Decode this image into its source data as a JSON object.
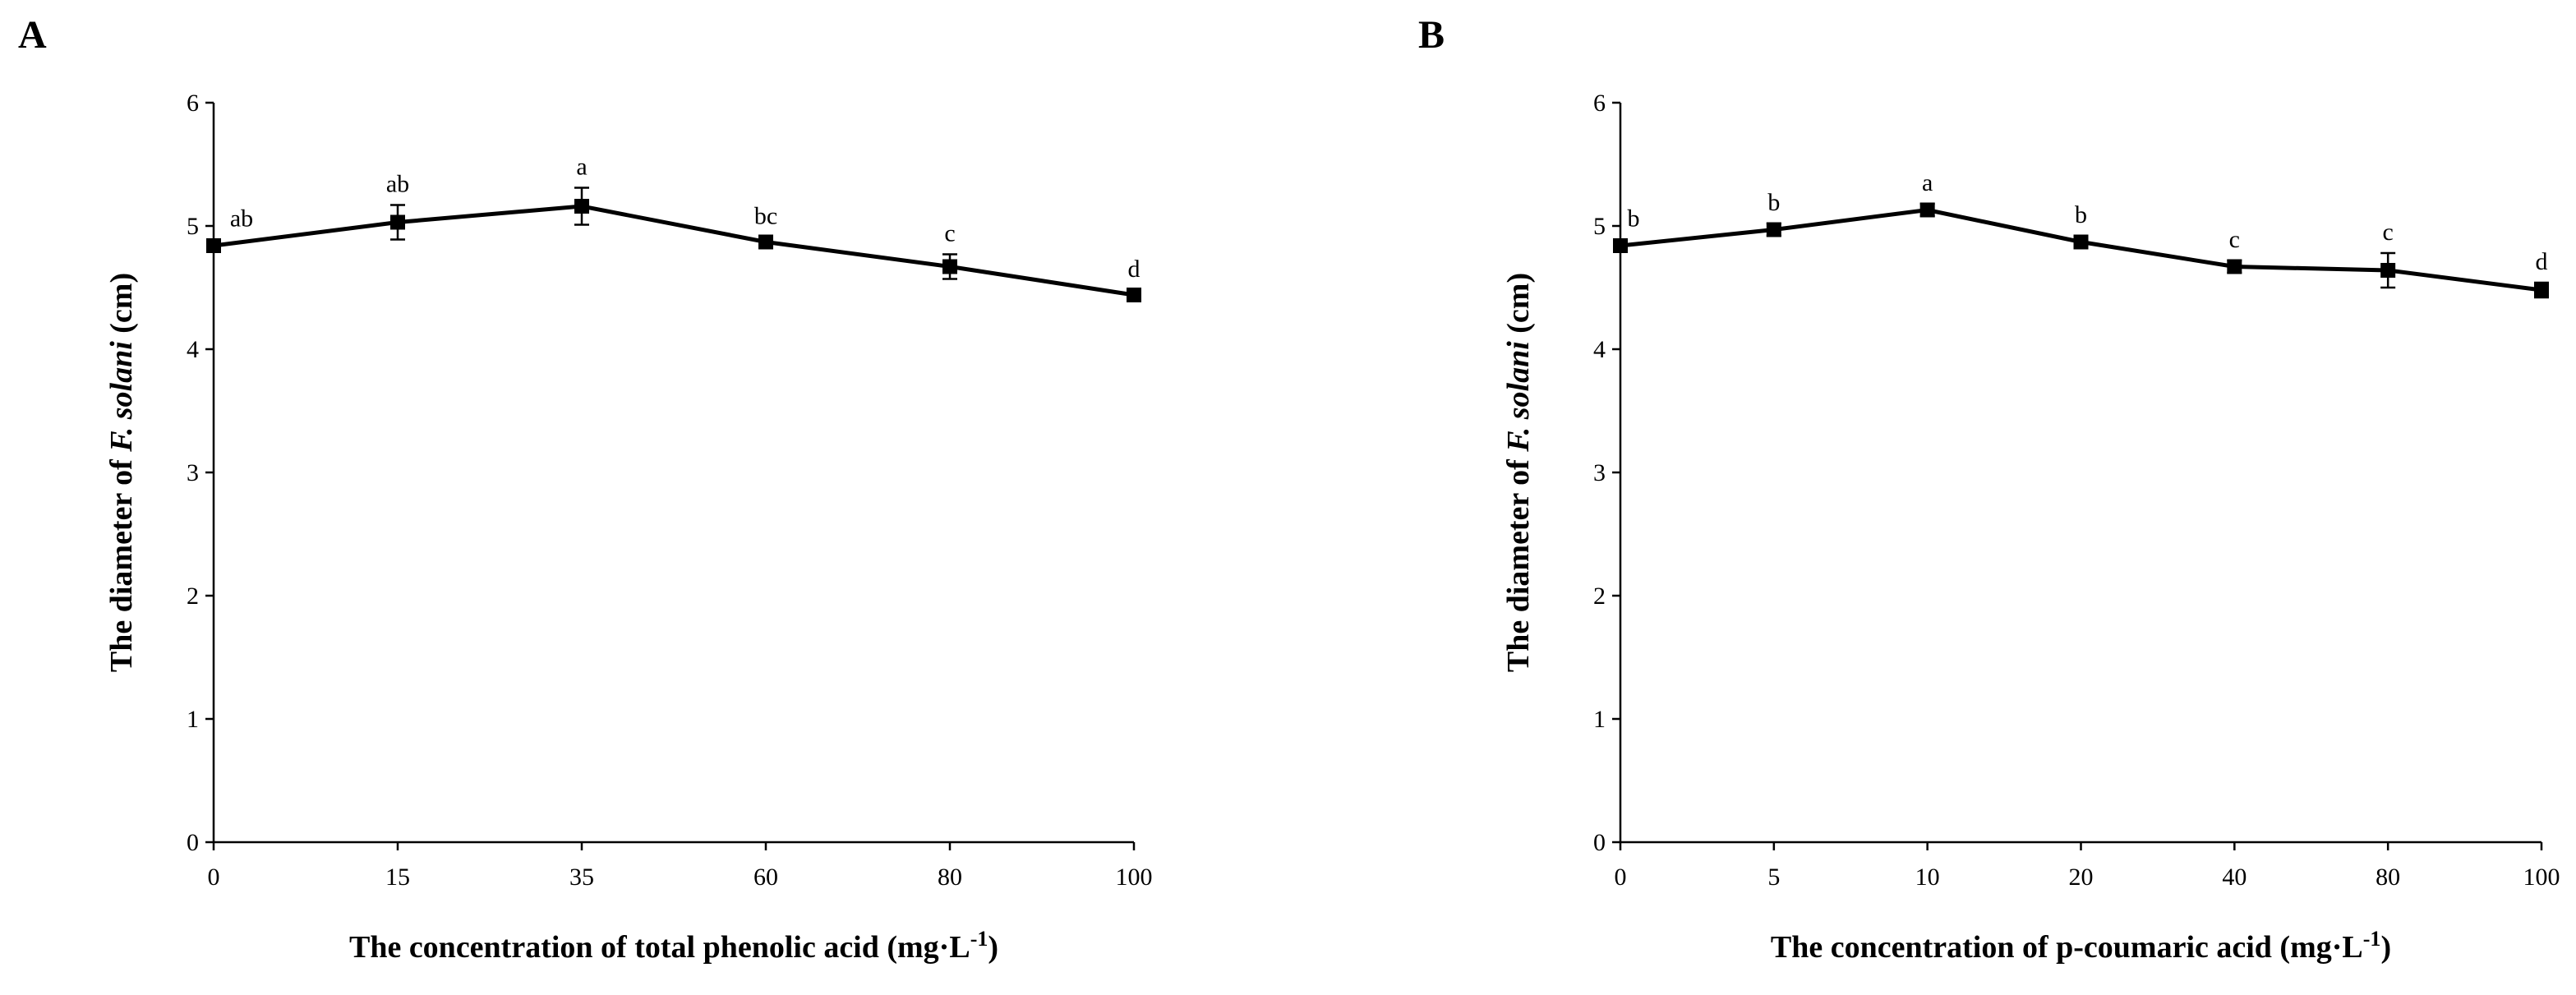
{
  "chart_data": [
    {
      "panel": "A",
      "type": "line",
      "title": "",
      "xlabel": "The concentration of total phenolic acid (mg·L",
      "xlabel_sup": "-1",
      "xlabel_close": ")",
      "ylabel_pre": "The diameter of ",
      "ylabel_italic": "F. solani",
      "ylabel_post": " (cm)",
      "categories": [
        "0",
        "15",
        "35",
        "60",
        "80",
        "100"
      ],
      "values": [
        4.84,
        5.03,
        5.16,
        4.87,
        4.67,
        4.44
      ],
      "errors": [
        0.05,
        0.14,
        0.15,
        0.04,
        0.1,
        0.04
      ],
      "significance": [
        "ab",
        "ab",
        "a",
        "bc",
        "c",
        "d"
      ],
      "ylim": [
        0,
        6
      ],
      "yticks": [
        "0",
        "1",
        "2",
        "3",
        "4",
        "5",
        "6"
      ]
    },
    {
      "panel": "B",
      "type": "line",
      "title": "",
      "xlabel": "The concentration of p-coumaric acid (mg·L",
      "xlabel_sup": "-1",
      "xlabel_close": ")",
      "ylabel_pre": "The diameter of ",
      "ylabel_italic": "F. solani",
      "ylabel_post": " (cm)",
      "categories": [
        "0",
        "5",
        "10",
        "20",
        "40",
        "80",
        "100"
      ],
      "values": [
        4.84,
        4.97,
        5.13,
        4.87,
        4.67,
        4.64,
        4.48
      ],
      "errors": [
        0.05,
        0.05,
        0.05,
        0.05,
        0.05,
        0.14,
        0.06
      ],
      "significance": [
        "b",
        "b",
        "a",
        "b",
        "c",
        "c",
        "d"
      ],
      "ylim": [
        0,
        6
      ],
      "yticks": [
        "0",
        "1",
        "2",
        "3",
        "4",
        "5",
        "6"
      ]
    }
  ]
}
